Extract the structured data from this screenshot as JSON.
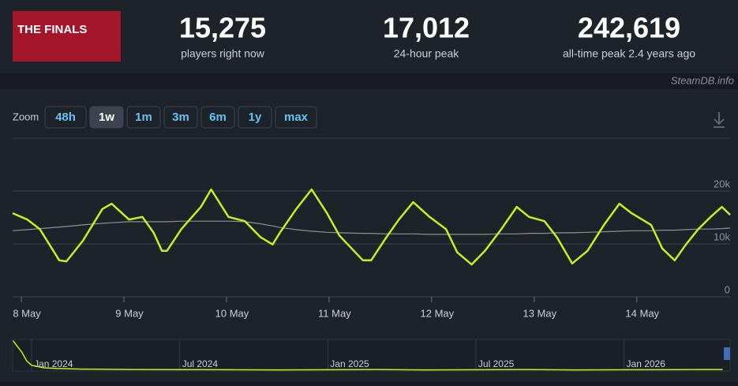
{
  "header": {
    "logo_text": "THE FINALS",
    "stats": [
      {
        "value": "15,275",
        "label": "players right now"
      },
      {
        "value": "17,012",
        "label": "24-hour peak"
      },
      {
        "value": "242,619",
        "label": "all-time peak 2.4 years ago"
      }
    ],
    "credit": "SteamDB.info"
  },
  "zoom": {
    "label": "Zoom",
    "buttons": [
      "48h",
      "1w",
      "1m",
      "3m",
      "6m",
      "1y",
      "max"
    ],
    "active": 1
  },
  "chart_data": {
    "type": "line",
    "x": [
      -0.085,
      0.06,
      0.18,
      0.37,
      0.44,
      0.6,
      0.79,
      0.88,
      1.05,
      1.18,
      1.29,
      1.37,
      1.42,
      1.56,
      1.75,
      1.85,
      2.02,
      2.18,
      2.33,
      2.45,
      2.52,
      2.68,
      2.83,
      2.98,
      3.1,
      3.33,
      3.41,
      3.56,
      3.68,
      3.82,
      3.98,
      4.14,
      4.25,
      4.39,
      4.52,
      4.68,
      4.83,
      4.95,
      5.1,
      5.22,
      5.37,
      5.52,
      5.68,
      5.83,
      5.95,
      6.14,
      6.25,
      6.37,
      6.48,
      6.6,
      6.72,
      6.83,
      6.91
    ],
    "series": [
      {
        "color": "#8f9094",
        "values": [
          12500,
          12700,
          12900,
          13200,
          13300,
          13600,
          13900,
          14000,
          14200,
          14200,
          14200,
          14200,
          14200,
          14300,
          14300,
          14300,
          14300,
          14200,
          13800,
          13400,
          13100,
          12700,
          12400,
          12200,
          12100,
          12000,
          12000,
          11900,
          11900,
          11900,
          11800,
          11800,
          11800,
          11800,
          11800,
          11900,
          11900,
          12000,
          12000,
          12100,
          12100,
          12200,
          12300,
          12400,
          12500,
          12500,
          12600,
          12600,
          12700,
          12800,
          12800,
          12900,
          13000
        ]
      },
      {
        "color": "#c6ef1f",
        "values": [
          15800,
          14600,
          12800,
          6900,
          6700,
          10600,
          16600,
          17600,
          14600,
          15100,
          12100,
          8700,
          8700,
          12800,
          17000,
          20300,
          15100,
          14300,
          11300,
          9900,
          12100,
          16600,
          20300,
          15800,
          11600,
          6900,
          6900,
          11300,
          14600,
          17900,
          15100,
          12800,
          8400,
          6100,
          8700,
          12800,
          17000,
          15100,
          14300,
          11300,
          6300,
          8700,
          13600,
          17600,
          15800,
          13600,
          9100,
          6900,
          9900,
          12800,
          15100,
          17000,
          15500
        ]
      }
    ],
    "xlim": [
      -0.085,
      6.91
    ],
    "xticks": [
      {
        "value": 0,
        "label": "8 May"
      },
      {
        "value": 1,
        "label": "9 May"
      },
      {
        "value": 2,
        "label": "10 May"
      },
      {
        "value": 3,
        "label": "11 May"
      },
      {
        "value": 4,
        "label": "12 May"
      },
      {
        "value": 5,
        "label": "13 May"
      },
      {
        "value": 6,
        "label": "14 May"
      }
    ],
    "ylim": [
      0,
      30000
    ],
    "yticks": [
      0,
      {
        "value": 10000,
        "label": "10k"
      },
      {
        "value": 20000,
        "label": "20k"
      }
    ],
    "grid": true
  },
  "navigator": {
    "x": [
      -0.75,
      -0.6,
      -0.4,
      -0.2,
      0,
      0.5,
      1,
      2,
      4,
      6,
      8,
      10,
      12,
      14,
      16,
      18,
      20,
      22,
      24,
      26,
      28
    ],
    "values": [
      240000,
      200000,
      150000,
      80000,
      45000,
      25000,
      20000,
      15000,
      12000,
      11000,
      10000,
      9000,
      10000,
      12000,
      9000,
      10000,
      12000,
      9000,
      10000,
      11000,
      12000
    ],
    "xlim": [
      -0.77,
      28.3
    ],
    "ylim": [
      0,
      250000
    ],
    "xticks": [
      {
        "value": 0,
        "label": "Jan 2024"
      },
      {
        "value": 6,
        "label": "Jul 2024"
      },
      {
        "value": 12,
        "label": "Jan 2025"
      },
      {
        "value": 18,
        "label": "Jul 2025"
      },
      {
        "value": 24,
        "label": "Jan 2026"
      }
    ],
    "color": "#c6ef1f"
  }
}
